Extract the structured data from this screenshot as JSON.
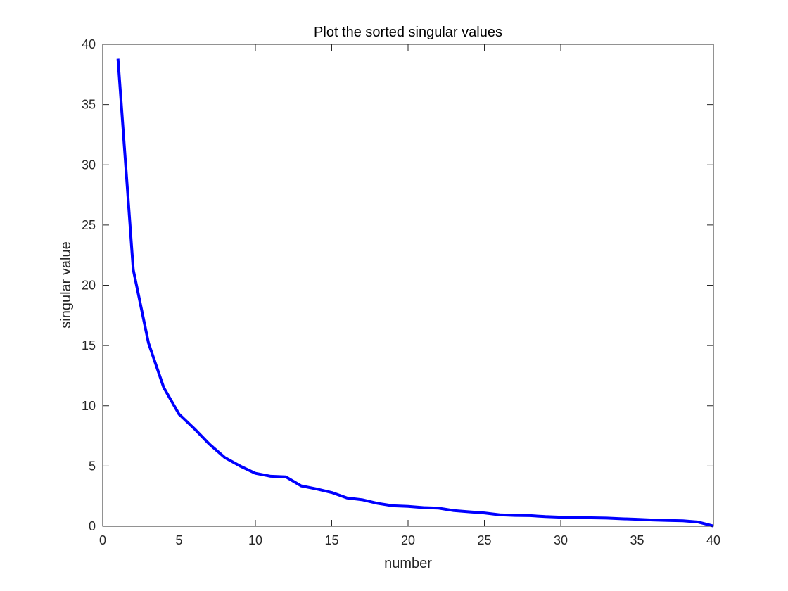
{
  "chart_data": {
    "type": "line",
    "title": "Plot the sorted singular values",
    "xlabel": "number",
    "ylabel": "singular value",
    "xlim": [
      0,
      40
    ],
    "ylim": [
      0,
      40
    ],
    "xticks": [
      0,
      5,
      10,
      15,
      20,
      25,
      30,
      35,
      40
    ],
    "yticks": [
      0,
      5,
      10,
      15,
      20,
      25,
      30,
      35,
      40
    ],
    "grid": false,
    "series": [
      {
        "color": "#0000ff",
        "x": [
          1,
          2,
          3,
          4,
          5,
          6,
          7,
          8,
          9,
          10,
          11,
          12,
          13,
          14,
          15,
          16,
          17,
          18,
          19,
          20,
          21,
          22,
          23,
          24,
          25,
          26,
          27,
          28,
          29,
          30,
          31,
          32,
          33,
          34,
          35,
          36,
          37,
          38,
          39,
          40
        ],
        "values": [
          38.8,
          21.3,
          15.2,
          11.5,
          9.3,
          8.1,
          6.8,
          5.7,
          5.0,
          4.4,
          4.15,
          4.1,
          3.35,
          3.1,
          2.8,
          2.35,
          2.2,
          1.9,
          1.7,
          1.65,
          1.55,
          1.5,
          1.3,
          1.2,
          1.1,
          0.95,
          0.9,
          0.88,
          0.8,
          0.75,
          0.72,
          0.7,
          0.68,
          0.62,
          0.58,
          0.52,
          0.48,
          0.45,
          0.35,
          0.02
        ]
      }
    ]
  }
}
